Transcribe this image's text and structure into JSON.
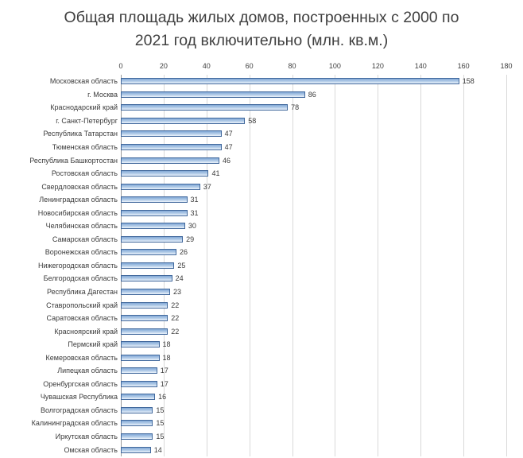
{
  "chart_data": {
    "type": "bar",
    "orientation": "horizontal",
    "title": "Общая площадь жилых домов, построенных с 2000 по 2021 год включительно (млн. кв.м.)",
    "xlabel": "",
    "ylabel": "",
    "xlim": [
      0,
      180
    ],
    "x_ticks": [
      0,
      20,
      40,
      60,
      80,
      100,
      120,
      140,
      160,
      180
    ],
    "grid": true,
    "legend": "none",
    "categories": [
      "Московская область",
      "г. Москва",
      "Краснодарский край",
      "г. Санкт-Петербург",
      "Республика Татарстан",
      "Тюменская область",
      "Республика Башкортостан",
      "Ростовская область",
      "Свердловская область",
      "Ленинградская область",
      "Новосибирская область",
      "Челябинская область",
      "Самарская область",
      "Воронежская область",
      "Нижегородская область",
      "Белгородская область",
      "Республика Дагестан",
      "Ставропольский край",
      "Саратовская область",
      "Красноярский край",
      "Пермский край",
      "Кемеровская область",
      "Липецкая область",
      "Оренбургская область",
      "Чувашская Республика",
      "Волгоградская область",
      "Калининградская область",
      "Иркутская область",
      "Омская область"
    ],
    "values": [
      158,
      86,
      78,
      58,
      47,
      47,
      46,
      41,
      37,
      31,
      31,
      30,
      29,
      26,
      25,
      24,
      23,
      22,
      22,
      22,
      18,
      18,
      17,
      17,
      16,
      15,
      15,
      15,
      14
    ],
    "colors": {
      "bar_gradient_top": "#82a9d6",
      "bar_gradient_bottom": "#ecf3fb",
      "bar_border": "#41689c",
      "gridline": "#d9d9d9",
      "axis_line": "#9b9b9b",
      "title_text": "#404040",
      "label_text": "#3a3a3a",
      "background": "#ffffff"
    }
  }
}
